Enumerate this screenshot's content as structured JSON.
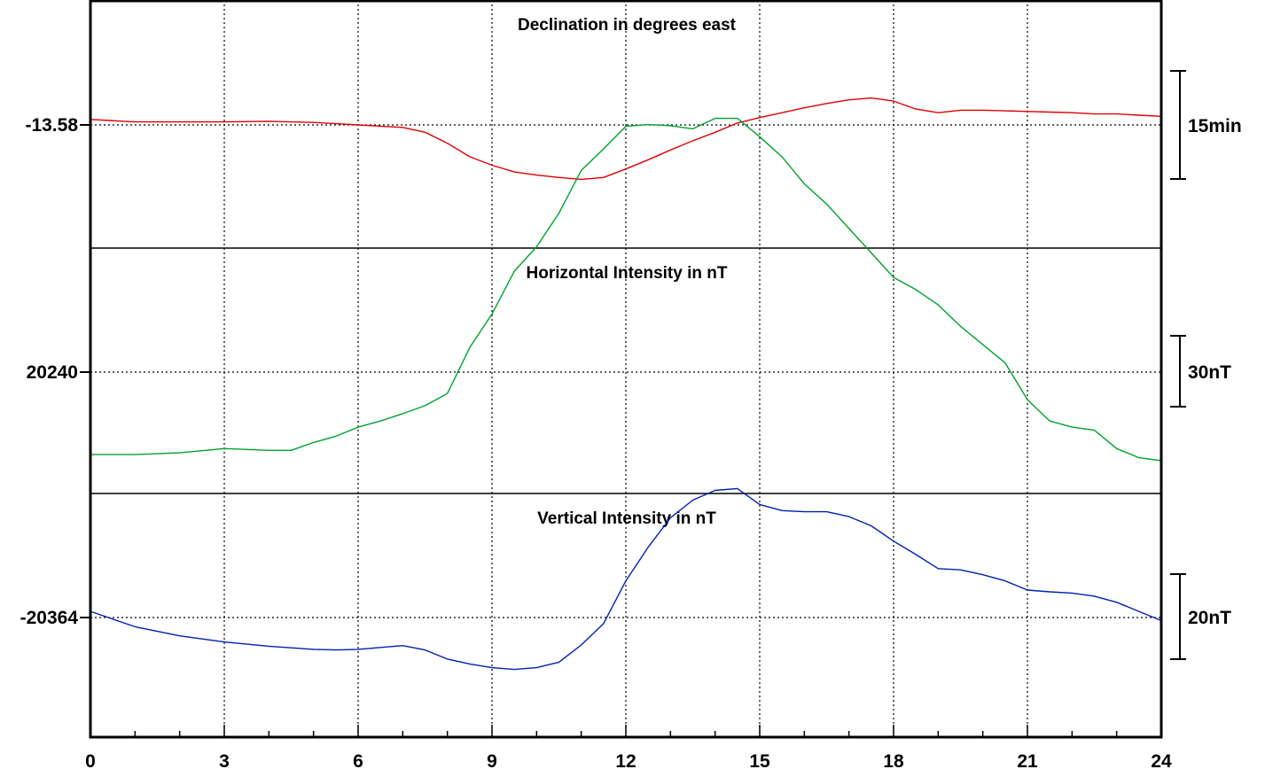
{
  "chart_data": {
    "type": "line",
    "x_range": [
      0,
      24
    ],
    "x_ticks": [
      "0",
      "3",
      "6",
      "9",
      "12",
      "15",
      "18",
      "21",
      "24"
    ],
    "grid": true,
    "panels": [
      {
        "title": "Declination in degrees east",
        "ref_label": "-13.58",
        "scale_label": "15min",
        "color": "#e00000",
        "series": {
          "x": [
            0,
            1,
            2,
            3,
            4,
            5,
            5.5,
            6,
            6.5,
            7,
            7.5,
            8,
            8.5,
            9,
            9.5,
            10,
            10.5,
            11,
            11.5,
            12,
            12.5,
            13,
            13.5,
            14,
            14.5,
            15,
            15.5,
            16,
            16.5,
            17,
            17.5,
            18,
            18.5,
            19,
            19.5,
            20,
            20.5,
            21,
            21.5,
            22,
            22.5,
            23,
            23.5,
            24
          ],
          "y": [
            0.9,
            0.5,
            0.5,
            0.5,
            0.6,
            0.4,
            0.2,
            0.0,
            -0.2,
            -0.4,
            -1.2,
            -3.0,
            -5.2,
            -6.6,
            -7.7,
            -8.2,
            -8.6,
            -8.9,
            -8.6,
            -7.2,
            -5.7,
            -4.1,
            -2.6,
            -1.2,
            0.3,
            1.2,
            2.0,
            2.8,
            3.5,
            4.1,
            4.4,
            3.9,
            2.6,
            2.0,
            2.4,
            2.4,
            2.3,
            2.2,
            2.1,
            2.0,
            1.8,
            1.8,
            1.6,
            1.4
          ]
        }
      },
      {
        "title": "Horizontal Intensity in nT",
        "ref_label": "20240",
        "scale_label": "30nT",
        "color": "#00a030",
        "series": {
          "x": [
            0,
            1,
            2,
            3,
            4,
            4.5,
            5,
            5.5,
            6,
            6.5,
            7,
            7.5,
            8,
            8.5,
            9,
            9.5,
            10,
            10.5,
            11,
            11.5,
            12,
            12.5,
            13,
            13.5,
            14,
            14.5,
            15,
            15.5,
            16,
            16.5,
            17,
            17.5,
            18,
            18.5,
            19,
            19.5,
            20,
            20.5,
            21,
            21.5,
            22,
            22.5,
            23,
            23.5,
            24
          ],
          "y": [
            -13.5,
            -13.5,
            -13.2,
            -12.5,
            -12.8,
            -12.8,
            -11.5,
            -10.5,
            -9.0,
            -8.0,
            -6.8,
            -5.5,
            -3.5,
            4.0,
            9.5,
            16.5,
            20.5,
            26.0,
            33.0,
            36.5,
            40.2,
            40.5,
            40.3,
            39.8,
            41.5,
            41.5,
            38.5,
            35.2,
            30.8,
            27.5,
            23.5,
            19.5,
            15.5,
            13.5,
            11.0,
            7.5,
            4.5,
            1.5,
            -4.5,
            -8.0,
            -9.0,
            -9.5,
            -12.5,
            -14.0,
            -14.5
          ]
        }
      },
      {
        "title": "Vertical Intensity in nT",
        "ref_label": "-20364",
        "scale_label": "20nT",
        "color": "#0020b0",
        "series": {
          "x": [
            0,
            1,
            2,
            3,
            4,
            5,
            5.5,
            6,
            6.5,
            7,
            7.5,
            8,
            8.5,
            9,
            9.5,
            10,
            10.5,
            11,
            11.5,
            12,
            12.5,
            13,
            13.5,
            14,
            14.5,
            15,
            15.5,
            16,
            16.5,
            17,
            17.5,
            18,
            18.5,
            19,
            19.5,
            20,
            20.5,
            21,
            21.5,
            22,
            22.5,
            23,
            23.5,
            24
          ],
          "y": [
            1.0,
            -1.5,
            -3.0,
            -4.0,
            -4.7,
            -5.2,
            -5.3,
            -5.2,
            -4.9,
            -4.6,
            -5.3,
            -6.8,
            -7.6,
            -8.2,
            -8.5,
            -8.2,
            -7.3,
            -4.5,
            -1.0,
            6.0,
            11.5,
            16.3,
            19.2,
            20.8,
            21.1,
            18.5,
            17.5,
            17.3,
            17.3,
            16.5,
            15.0,
            12.5,
            10.3,
            8.0,
            7.8,
            7.0,
            6.0,
            4.5,
            4.2,
            4.0,
            3.5,
            2.5,
            1.0,
            -0.5
          ]
        }
      }
    ]
  }
}
